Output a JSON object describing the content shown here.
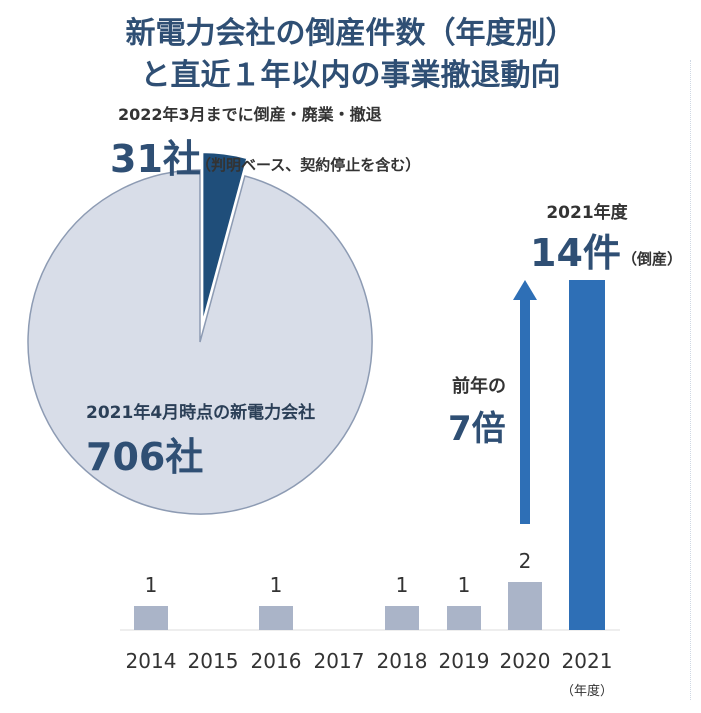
{
  "title": {
    "line1": "新電力会社の倒産件数（年度別）",
    "line2": "と直近１年以内の事業撤退動向"
  },
  "colors": {
    "title": "#2f4f74",
    "pie_main": "#d8dde8",
    "pie_slice": "#1f4e7a",
    "bar_gray": "#aab4c8",
    "bar_highlight": "#2e6fb6",
    "arrow": "#2e6fb6"
  },
  "chart_data": [
    {
      "type": "pie",
      "slices": [
        {
          "label": "2022年3月までに倒産・廃業・撤退",
          "value": 31,
          "value_text": "31社",
          "note": "（判明ベース、契約停止を含む）"
        },
        {
          "label": "2021年4月時点の新電力会社",
          "value": 706,
          "value_text": "706社"
        }
      ]
    },
    {
      "type": "bar",
      "categories": [
        "2014",
        "2015",
        "2016",
        "2017",
        "2018",
        "2019",
        "2020",
        "2021"
      ],
      "values": [
        1,
        0,
        1,
        0,
        1,
        1,
        2,
        14
      ],
      "value_labels": [
        "1",
        "",
        "1",
        "",
        "1",
        "1",
        "2",
        ""
      ],
      "highlight": {
        "category": "2021",
        "top_label": "2021年度",
        "value_text": "14件",
        "note": "（倒産）"
      },
      "x_suffix": "（年度）",
      "annotation": {
        "line1": "前年の",
        "line2": "7倍"
      },
      "ylim": [
        0,
        14
      ]
    }
  ]
}
